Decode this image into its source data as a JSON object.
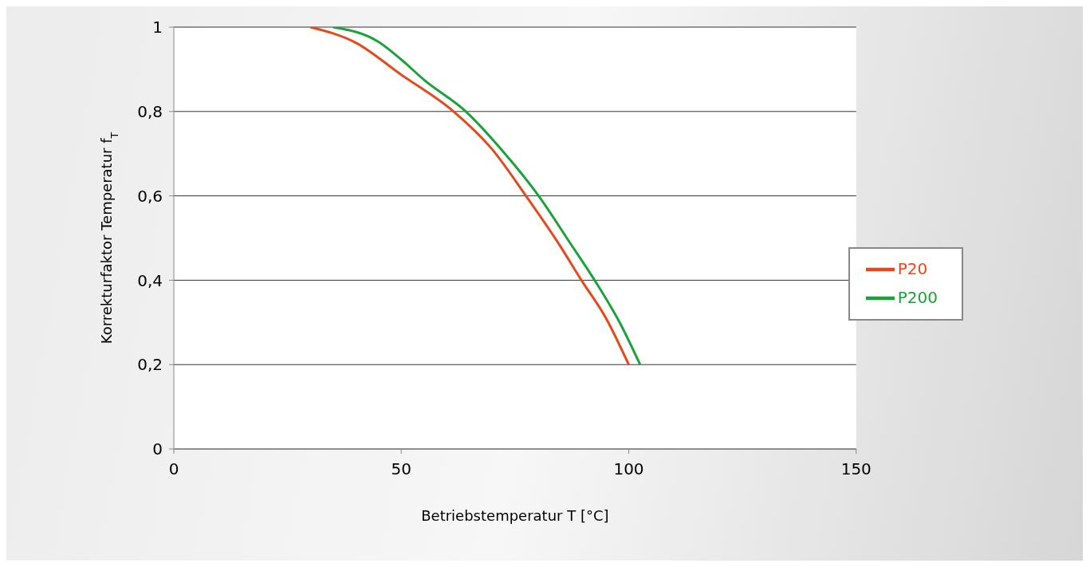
{
  "chart_data": {
    "type": "line",
    "xlabel": "Betriebstemperatur T [°C]",
    "ylabel": "Korrekturfaktor Temperatur f$_{T}$",
    "xlim": [
      0,
      150
    ],
    "xticks": [
      0,
      50,
      100,
      150
    ],
    "ylim": [
      0,
      1
    ],
    "yticks": [
      {
        "value": 0,
        "label": "0"
      },
      {
        "value": 0.2,
        "label": "0,2"
      },
      {
        "value": 0.4,
        "label": "0,4"
      },
      {
        "value": 0.6,
        "label": "0,6"
      },
      {
        "value": 0.8,
        "label": "0,8"
      },
      {
        "value": 1,
        "label": "1"
      }
    ],
    "grid": "y",
    "legend": "right",
    "marker": "none",
    "line_style": "solid",
    "series": [
      {
        "name": "P20",
        "color": "#e8481c",
        "x": [
          30,
          40,
          50,
          61.5,
          70,
          77.4,
          85,
          89.6,
          95,
          100
        ],
        "values": [
          1,
          0.963,
          0.887,
          0.8,
          0.71,
          0.6,
          0.48,
          0.4,
          0.31,
          0.2
        ]
      },
      {
        "name": "P200",
        "color": "#1aa33a",
        "x": [
          35,
          45,
          50,
          55,
          64.2,
          72,
          80.2,
          87,
          92.5,
          98,
          102.5
        ],
        "values": [
          1,
          0.965,
          0.923,
          0.875,
          0.8,
          0.71,
          0.6,
          0.49,
          0.4,
          0.3,
          0.2
        ]
      }
    ]
  }
}
